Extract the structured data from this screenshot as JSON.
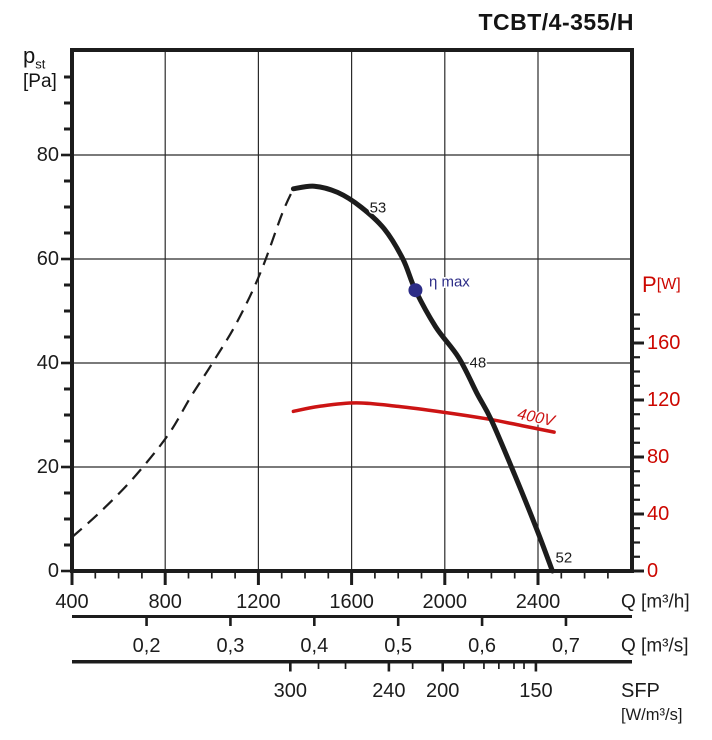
{
  "title": "TCBT/4-355/H",
  "pst_label": {
    "main": "p",
    "sub": "st",
    "unit": "[Pa]"
  },
  "colors": {
    "ink": "#1c1c1c",
    "grid": "#2b2b2b",
    "red": "#cc1414",
    "red_label": "#cc0700",
    "blue": "#2d2d87"
  },
  "chart_data": {
    "type": "line",
    "title": "TCBT/4-355/H",
    "x_axis": {
      "label": "Q [m³/h]",
      "range": [
        400,
        2800
      ],
      "major_ticks": [
        400,
        800,
        1200,
        1600,
        2000,
        2400
      ],
      "minor_step": 100,
      "minor_last": 2700,
      "grid_lines": [
        800,
        1200,
        1600,
        2000,
        2400
      ]
    },
    "y_axis": {
      "label": "pst [Pa]",
      "range": [
        0,
        100
      ],
      "major_ticks": [
        0,
        20,
        40,
        60,
        80
      ],
      "minor_step": 5,
      "minor_last": 95,
      "grid_lines": [
        20,
        40,
        60,
        80
      ]
    },
    "power_axis": {
      "label_main": "P",
      "label_unit": "[W]",
      "range": [
        0,
        183
      ],
      "major_ticks": [
        0,
        40,
        80,
        120,
        160
      ],
      "minor_step": 10,
      "minor_last": 180
    },
    "q_s_axis": {
      "label": "Q [m³/s]",
      "ticks": [
        {
          "label": "0,2",
          "q_m3h": 720
        },
        {
          "label": "0,3",
          "q_m3h": 1080
        },
        {
          "label": "0,4",
          "q_m3h": 1440
        },
        {
          "label": "0,5",
          "q_m3h": 1800
        },
        {
          "label": "0,6",
          "q_m3h": 2160
        },
        {
          "label": "0,7",
          "q_m3h": 2520
        }
      ]
    },
    "sfp_axis": {
      "label": "SFP",
      "unit": "[W/m³/s]",
      "major_ticks": [
        {
          "label": "300",
          "q_m3h": 1337
        },
        {
          "label": "240",
          "q_m3h": 1760
        },
        {
          "label": "200",
          "q_m3h": 1991
        },
        {
          "label": "150",
          "q_m3h": 2391
        }
      ],
      "minor_ticks_q": [
        1458,
        1574,
        1862,
        2082,
        2168,
        2232,
        2297,
        2340
      ]
    },
    "series": [
      {
        "name": "fan-curve",
        "y_unit": "Pa",
        "style": "solid-thick",
        "points": [
          [
            1350,
            73.5
          ],
          [
            1440,
            74
          ],
          [
            1540,
            72.8
          ],
          [
            1640,
            70
          ],
          [
            1740,
            65.8
          ],
          [
            1820,
            60
          ],
          [
            1874,
            54
          ],
          [
            1960,
            47
          ],
          [
            2060,
            41
          ],
          [
            2140,
            34
          ],
          [
            2200,
            29
          ],
          [
            2300,
            18.5
          ],
          [
            2395,
            8
          ],
          [
            2462,
            0
          ]
        ]
      },
      {
        "name": "fan-curve-unstable",
        "y_unit": "Pa",
        "style": "dashed",
        "points": [
          [
            400,
            6.5
          ],
          [
            520,
            11.3
          ],
          [
            660,
            17.7
          ],
          [
            810,
            26
          ],
          [
            910,
            33.5
          ],
          [
            1010,
            40.5
          ],
          [
            1110,
            48
          ],
          [
            1210,
            57.5
          ],
          [
            1300,
            68.5
          ],
          [
            1350,
            73.5
          ]
        ]
      },
      {
        "name": "power-curve-400V",
        "y_unit": "W",
        "style": "red",
        "points": [
          [
            1350,
            112
          ],
          [
            1460,
            115.5
          ],
          [
            1620,
            118
          ],
          [
            1800,
            115.5
          ],
          [
            1990,
            111.5
          ],
          [
            2190,
            106.5
          ],
          [
            2330,
            102
          ],
          [
            2469,
            97.5
          ]
        ]
      }
    ],
    "eta_max_point": {
      "q_m3h": 1874,
      "p_pa": 54
    },
    "annotations": [
      {
        "text": "53",
        "q": 1713,
        "p": 69.8
      },
      {
        "text": "48",
        "q": 2142,
        "p": 40
      },
      {
        "text": "52",
        "q": 2511,
        "p": 2.5
      },
      {
        "text": "η max",
        "q": 1932,
        "p": 55.6,
        "anchor": "start",
        "color": "blue",
        "size": 15
      },
      {
        "text": "400V",
        "q": 2391,
        "w": 107.4,
        "rotate": 12,
        "color": "red",
        "italic": true,
        "size": 16
      }
    ]
  }
}
